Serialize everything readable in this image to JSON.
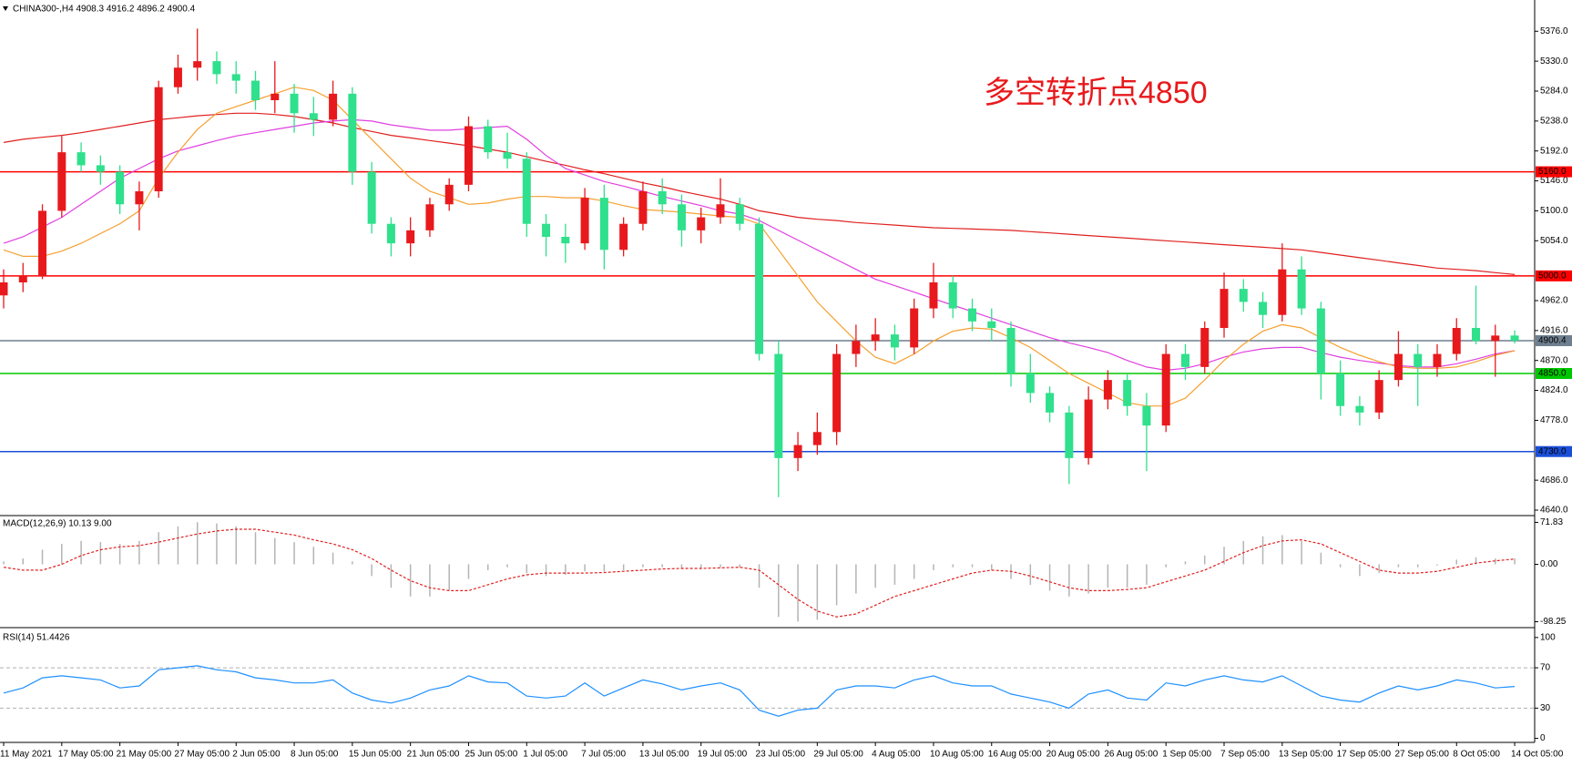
{
  "chart_data": [
    {
      "type": "candlestick",
      "title": "CHINA300-,H4  4908.3 4916.2 4896.2 4900.4",
      "annotation": "多空转折点4850",
      "up_color": "#e8191c",
      "down_color": "#2fe08c",
      "categories": [
        "11 May 2021",
        null,
        null,
        "17 May 05:00",
        null,
        null,
        "21 May 05:00",
        null,
        null,
        "27 May 05:00",
        null,
        null,
        "2 Jun 05:00",
        null,
        null,
        "8 Jun 05:00",
        null,
        null,
        "15 Jun 05:00",
        null,
        null,
        "21 Jun 05:00",
        null,
        null,
        "25 Jun 05:00",
        null,
        null,
        "1 Jul 05:00",
        null,
        null,
        "7 Jul 05:00",
        null,
        null,
        "13 Jul 05:00",
        null,
        null,
        "19 Jul 05:00",
        null,
        null,
        "23 Jul 05:00",
        null,
        null,
        "29 Jul 05:00",
        null,
        null,
        "4 Aug 05:00",
        null,
        null,
        "10 Aug 05:00",
        null,
        null,
        "16 Aug 05:00",
        null,
        null,
        "20 Aug 05:00",
        null,
        null,
        "26 Aug 05:00",
        null,
        null,
        "1 Sep 05:00",
        null,
        null,
        "7 Sep 05:00",
        null,
        null,
        "13 Sep 05:00",
        null,
        null,
        "17 Sep 05:00",
        null,
        null,
        "27 Sep 05:00",
        null,
        null,
        "8 Oct 05:00",
        null,
        null,
        "14 Oct 05:00"
      ],
      "open": [
        4970,
        4990,
        5000,
        5100,
        5190,
        5170,
        5160,
        5110,
        5130,
        5290,
        5320,
        5330,
        5310,
        5300,
        5270,
        5280,
        5250,
        5240,
        5280,
        5160,
        5080,
        5050,
        5070,
        5110,
        5140,
        5230,
        5190,
        5180,
        5080,
        5060,
        5050,
        5120,
        5040,
        5080,
        5130,
        5110,
        5070,
        5090,
        5110,
        5080,
        4880,
        4720,
        4740,
        4760,
        4880,
        4900,
        4910,
        4890,
        4950,
        4990,
        4950,
        4930,
        4920,
        4850,
        4820,
        4790,
        4720,
        4810,
        4840,
        4800,
        4770,
        4880,
        4860,
        4920,
        4980,
        4960,
        4940,
        5010,
        4950,
        4850,
        4800,
        4790,
        4840,
        4880,
        4860,
        4880,
        4920,
        4900,
        4908.3
      ],
      "high": [
        5010,
        5020,
        5110,
        5215,
        5205,
        5185,
        5170,
        5145,
        5300,
        5340,
        5380,
        5345,
        5330,
        5315,
        5330,
        5295,
        5275,
        5300,
        5290,
        5175,
        5090,
        5090,
        5120,
        5150,
        5245,
        5240,
        5220,
        5190,
        5095,
        5080,
        5135,
        5140,
        5090,
        5145,
        5150,
        5125,
        5105,
        5150,
        5120,
        5090,
        4900,
        4760,
        4790,
        4895,
        4925,
        4935,
        4925,
        4965,
        5020,
        5000,
        4965,
        4950,
        4930,
        4880,
        4830,
        4800,
        4830,
        4855,
        4850,
        4820,
        4895,
        4895,
        4930,
        5005,
        4995,
        4975,
        5050,
        5030,
        4960,
        4870,
        4815,
        4855,
        4915,
        4895,
        4895,
        4935,
        4985,
        4925,
        4916.2
      ],
      "low": [
        4950,
        4975,
        4995,
        5090,
        5160,
        5140,
        5095,
        5070,
        5120,
        5280,
        5300,
        5295,
        5280,
        5255,
        5250,
        5220,
        5215,
        5230,
        5140,
        5065,
        5030,
        5030,
        5060,
        5100,
        5130,
        5180,
        5165,
        5060,
        5030,
        5020,
        5040,
        5010,
        5030,
        5070,
        5095,
        5045,
        5050,
        5080,
        5070,
        4870,
        4660,
        4700,
        4725,
        4740,
        4860,
        4885,
        4870,
        4880,
        4935,
        4935,
        4915,
        4900,
        4830,
        4805,
        4775,
        4680,
        4710,
        4795,
        4785,
        4700,
        4760,
        4840,
        4850,
        4905,
        4945,
        4920,
        4930,
        4940,
        4810,
        4785,
        4770,
        4780,
        4830,
        4800,
        4845,
        4870,
        4895,
        4845,
        4896.2
      ],
      "close": [
        4990,
        5000,
        5100,
        5190,
        5170,
        5160,
        5110,
        5130,
        5290,
        5320,
        5330,
        5310,
        5300,
        5270,
        5280,
        5250,
        5240,
        5280,
        5160,
        5080,
        5050,
        5070,
        5110,
        5140,
        5230,
        5190,
        5180,
        5080,
        5060,
        5050,
        5120,
        5040,
        5080,
        5130,
        5110,
        5070,
        5090,
        5110,
        5080,
        4880,
        4720,
        4740,
        4760,
        4880,
        4900,
        4910,
        4890,
        4950,
        4990,
        4950,
        4930,
        4920,
        4850,
        4820,
        4790,
        4720,
        4810,
        4840,
        4800,
        4770,
        4880,
        4860,
        4920,
        4980,
        4960,
        4940,
        5010,
        4950,
        4850,
        4800,
        4790,
        4840,
        4880,
        4860,
        4880,
        4920,
        4900,
        4908.3,
        4900.4
      ],
      "series": [
        {
          "color": "#e02020",
          "values": [
            5205,
            5210,
            5213,
            5216,
            5220,
            5225,
            5230,
            5235,
            5240,
            5243,
            5246,
            5248,
            5250,
            5250,
            5248,
            5245,
            5240,
            5235,
            5228,
            5222,
            5216,
            5212,
            5208,
            5204,
            5200,
            5195,
            5190,
            5183,
            5176,
            5170,
            5163,
            5157,
            5150,
            5143,
            5137,
            5130,
            5124,
            5118,
            5110,
            5100,
            5095,
            5090,
            5087,
            5085,
            5082,
            5080,
            5078,
            5076,
            5074,
            5073,
            5072,
            5071,
            5070,
            5068,
            5066,
            5064,
            5062,
            5060,
            5058,
            5056,
            5054,
            5052,
            5050,
            5048,
            5046,
            5044,
            5042,
            5040,
            5036,
            5032,
            5028,
            5024,
            5020,
            5016,
            5012,
            5010,
            5008,
            5005,
            5002
          ]
        },
        {
          "color": "#e040e0",
          "values": [
            5050,
            5060,
            5075,
            5090,
            5110,
            5130,
            5150,
            5165,
            5180,
            5192,
            5200,
            5208,
            5215,
            5220,
            5225,
            5230,
            5235,
            5238,
            5240,
            5238,
            5232,
            5228,
            5224,
            5224,
            5226,
            5228,
            5230,
            5210,
            5185,
            5165,
            5155,
            5145,
            5138,
            5130,
            5122,
            5115,
            5108,
            5100,
            5095,
            5085,
            5070,
            5055,
            5040,
            5025,
            5010,
            4995,
            4985,
            4975,
            4965,
            4955,
            4945,
            4935,
            4925,
            4915,
            4905,
            4897,
            4890,
            4882,
            4870,
            4860,
            4855,
            4858,
            4865,
            4875,
            4883,
            4888,
            4890,
            4890,
            4882,
            4875,
            4870,
            4866,
            4862,
            4860,
            4860,
            4865,
            4872,
            4880,
            4885
          ]
        },
        {
          "color": "#f5a030",
          "values": [
            5040,
            5030,
            5030,
            5038,
            5050,
            5065,
            5080,
            5100,
            5150,
            5190,
            5225,
            5250,
            5260,
            5270,
            5280,
            5290,
            5285,
            5270,
            5240,
            5210,
            5180,
            5150,
            5130,
            5120,
            5110,
            5112,
            5118,
            5122,
            5122,
            5120,
            5120,
            5115,
            5108,
            5102,
            5100,
            5098,
            5095,
            5092,
            5090,
            5080,
            5040,
            5000,
            4960,
            4930,
            4900,
            4875,
            4865,
            4880,
            4900,
            4915,
            4920,
            4918,
            4905,
            4890,
            4870,
            4850,
            4835,
            4820,
            4805,
            4800,
            4800,
            4812,
            4840,
            4870,
            4895,
            4915,
            4925,
            4920,
            4905,
            4890,
            4878,
            4868,
            4860,
            4858,
            4858,
            4860,
            4868,
            4878,
            4885
          ]
        }
      ],
      "levels": [
        {
          "value": 5160,
          "label": "5160.0",
          "color": "#ff0000"
        },
        {
          "value": 5000,
          "label": "5000.0",
          "color": "#ff0000"
        },
        {
          "value": 4900.4,
          "label": "4900.4",
          "color": "#6f7f8f"
        },
        {
          "value": 4850,
          "label": "4850.0",
          "color": "#00c800"
        },
        {
          "value": 4730,
          "label": "4730.0",
          "color": "#1a4fd8"
        }
      ],
      "ylim": [
        4633,
        5424
      ],
      "yticks": [
        {
          "value": 5376,
          "label": "5376.0"
        },
        {
          "value": 5330,
          "label": "5330.0"
        },
        {
          "value": 5284,
          "label": "5284.0"
        },
        {
          "value": 5238,
          "label": "5238.0"
        },
        {
          "value": 5192,
          "label": "5192.0"
        },
        {
          "value": 5146,
          "label": "5146.0"
        },
        {
          "value": 5100,
          "label": "5100.0"
        },
        {
          "value": 5054,
          "label": "5054.0"
        },
        {
          "value": 4962,
          "label": "4962.0"
        },
        {
          "value": 4916,
          "label": "4916.0"
        },
        {
          "value": 4870,
          "label": "4870.0"
        },
        {
          "value": 4824,
          "label": "4824.0"
        },
        {
          "value": 4778,
          "label": "4778.0"
        },
        {
          "value": 4686,
          "label": "4686.0"
        },
        {
          "value": 4640,
          "label": "4640.0"
        }
      ]
    },
    {
      "type": "macd",
      "title": "MACD(12,26,9) 10.13 9.00",
      "series": [
        {
          "style": "histogram",
          "color": "#b4b4b4",
          "values": [
            5,
            10,
            25,
            35,
            40,
            38,
            35,
            40,
            55,
            65,
            72,
            70,
            65,
            55,
            45,
            38,
            30,
            20,
            5,
            -20,
            -40,
            -55,
            -55,
            -45,
            -25,
            -10,
            -5,
            -15,
            -20,
            -18,
            -12,
            -12,
            -10,
            -5,
            -5,
            -8,
            -8,
            -5,
            -5,
            -40,
            -90,
            -98,
            -95,
            -70,
            -50,
            -40,
            -35,
            -25,
            -10,
            -5,
            -5,
            -10,
            -25,
            -35,
            -45,
            -55,
            -50,
            -40,
            -40,
            -35,
            -5,
            5,
            15,
            30,
            40,
            48,
            50,
            40,
            20,
            -5,
            -20,
            -15,
            -5,
            -5,
            -2,
            8,
            12,
            10,
            10.13
          ]
        },
        {
          "style": "dotted",
          "color": "#e02020",
          "values": [
            -5,
            -10,
            -10,
            0,
            15,
            25,
            30,
            32,
            38,
            45,
            52,
            57,
            60,
            60,
            55,
            50,
            42,
            35,
            25,
            10,
            -10,
            -28,
            -40,
            -45,
            -45,
            -35,
            -25,
            -18,
            -15,
            -15,
            -15,
            -14,
            -12,
            -10,
            -8,
            -7,
            -7,
            -6,
            -5,
            -10,
            -35,
            -60,
            -80,
            -90,
            -85,
            -70,
            -55,
            -45,
            -35,
            -25,
            -15,
            -10,
            -12,
            -20,
            -30,
            -40,
            -45,
            -45,
            -43,
            -40,
            -30,
            -20,
            -10,
            5,
            20,
            32,
            40,
            42,
            35,
            20,
            5,
            -10,
            -15,
            -15,
            -12,
            -5,
            2,
            6,
            9
          ]
        }
      ],
      "ylim": [
        -106.8,
        80.3
      ],
      "yticks": [
        71.83,
        {
          "value": 0,
          "label": "0.00"
        },
        -98.25
      ]
    },
    {
      "type": "line",
      "title": "RSI(14) 51.4426",
      "series": [
        {
          "color": "#1e90ff",
          "values": [
            45,
            50,
            60,
            62,
            60,
            58,
            50,
            52,
            68,
            70,
            72,
            68,
            66,
            60,
            58,
            55,
            55,
            58,
            45,
            38,
            35,
            40,
            48,
            52,
            62,
            56,
            55,
            42,
            40,
            42,
            55,
            42,
            50,
            58,
            54,
            48,
            52,
            55,
            48,
            28,
            22,
            28,
            30,
            48,
            52,
            52,
            50,
            58,
            62,
            55,
            52,
            52,
            44,
            40,
            36,
            30,
            44,
            48,
            40,
            38,
            55,
            52,
            58,
            62,
            58,
            56,
            62,
            52,
            42,
            38,
            36,
            45,
            52,
            48,
            52,
            58,
            55,
            50,
            51.4426
          ]
        }
      ],
      "levels": [
        {
          "value": 70,
          "color": "#b0b0b0"
        },
        {
          "value": 30,
          "color": "#b0b0b0"
        }
      ],
      "ylim": [
        -4,
        108
      ],
      "yticks": [
        100,
        70,
        30,
        0
      ]
    }
  ]
}
